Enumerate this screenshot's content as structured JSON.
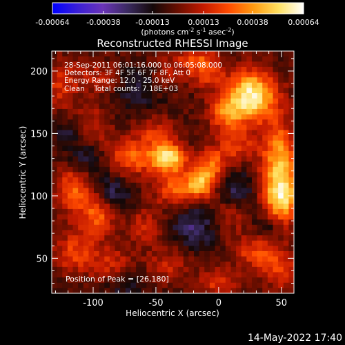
{
  "chart_data": {
    "type": "heatmap",
    "title": "Reconstructed RHESSI Image",
    "xlabel": "Heliocentric X (arcsec)",
    "ylabel": "Heliocentric Y (arcsec)",
    "xlim": [
      -133,
      60
    ],
    "ylim": [
      22,
      216
    ],
    "x_ticks": [
      -100,
      -50,
      0,
      50
    ],
    "y_ticks": [
      50,
      100,
      150,
      200
    ],
    "colorbar": {
      "range": [
        -0.00064,
        0.00064
      ],
      "ticks": [
        "-0.00064",
        "-0.00038",
        "-0.00013",
        "0.00013",
        "0.00038",
        "0.00064"
      ],
      "unit_label": "(photons cm",
      "unit_sup1": "-2",
      "unit_mid": " s",
      "unit_sup2": "-1",
      "unit_mid2": " asec",
      "unit_sup3": "-2",
      "unit_end": ")"
    },
    "annotations": [
      "28-Sep-2011 06:01:16.000 to 06:05:08.000",
      "Detectors: 3F 4F 5F 6F 7F 8F, Att 0",
      "Energy Range: 12.0 - 25.0 keV",
      "Clean    Total counts: 7.18E+03"
    ],
    "peak_label": "Position of Peak = [26,180]",
    "peak": [
      26,
      180
    ],
    "hotspots": [
      {
        "x": 26,
        "y": 180,
        "value": 0.00064,
        "sx": 14,
        "sy": 14
      },
      {
        "x": 50,
        "y": 100,
        "value": 0.00058,
        "sx": 10,
        "sy": 16
      },
      {
        "x": 48,
        "y": 135,
        "value": 0.0004,
        "sx": 10,
        "sy": 18
      },
      {
        "x": -40,
        "y": 130,
        "value": 0.00055,
        "sx": 10,
        "sy": 8
      },
      {
        "x": -15,
        "y": 110,
        "value": 0.00045,
        "sx": 8,
        "sy": 8
      },
      {
        "x": -35,
        "y": 105,
        "value": 0.0003,
        "sx": 12,
        "sy": 10
      },
      {
        "x": -5,
        "y": 125,
        "value": 0.00032,
        "sx": 8,
        "sy": 10
      },
      {
        "x": -70,
        "y": 130,
        "value": 0.00032,
        "sx": 14,
        "sy": 10
      },
      {
        "x": -50,
        "y": 150,
        "value": 0.00022,
        "sx": 12,
        "sy": 10
      },
      {
        "x": -100,
        "y": 155,
        "value": 0.00018,
        "sx": 10,
        "sy": 12
      },
      {
        "x": -115,
        "y": 105,
        "value": 0.00032,
        "sx": 10,
        "sy": 14
      },
      {
        "x": -95,
        "y": 85,
        "value": 0.00035,
        "sx": 10,
        "sy": 12
      },
      {
        "x": -115,
        "y": 55,
        "value": 0.00026,
        "sx": 12,
        "sy": 12
      },
      {
        "x": -85,
        "y": 45,
        "value": 0.0002,
        "sx": 12,
        "sy": 10
      },
      {
        "x": -125,
        "y": 190,
        "value": 0.00022,
        "sx": 10,
        "sy": 14
      },
      {
        "x": -95,
        "y": 195,
        "value": 0.00016,
        "sx": 12,
        "sy": 10
      },
      {
        "x": -40,
        "y": 200,
        "value": 0.00014,
        "sx": 10,
        "sy": 10
      },
      {
        "x": -10,
        "y": 200,
        "value": 0.00025,
        "sx": 10,
        "sy": 10
      },
      {
        "x": 5,
        "y": 165,
        "value": 0.0003,
        "sx": 10,
        "sy": 10
      },
      {
        "x": 15,
        "y": 140,
        "value": 0.00024,
        "sx": 10,
        "sy": 10
      },
      {
        "x": 30,
        "y": 55,
        "value": 0.00026,
        "sx": 14,
        "sy": 10
      },
      {
        "x": 0,
        "y": 30,
        "value": 0.00022,
        "sx": 12,
        "sy": 8
      },
      {
        "x": -40,
        "y": 45,
        "value": 0.00018,
        "sx": 12,
        "sy": 10
      },
      {
        "x": 50,
        "y": 40,
        "value": 0.00025,
        "sx": 10,
        "sy": 10
      },
      {
        "x": -60,
        "y": 75,
        "value": 0.0002,
        "sx": 10,
        "sy": 10
      },
      {
        "x": 10,
        "y": 85,
        "value": 0.00015,
        "sx": 10,
        "sy": 10
      },
      {
        "x": -20,
        "y": 210,
        "value": 0.0002,
        "sx": 10,
        "sy": 6
      }
    ],
    "coldspots": [
      {
        "x": -85,
        "y": 100,
        "value": -0.00022,
        "sx": 10,
        "sy": 12
      },
      {
        "x": -105,
        "y": 130,
        "value": -0.00018,
        "sx": 10,
        "sy": 10
      },
      {
        "x": -20,
        "y": 75,
        "value": -0.00022,
        "sx": 12,
        "sy": 12
      },
      {
        "x": 15,
        "y": 105,
        "value": -0.00018,
        "sx": 10,
        "sy": 10
      },
      {
        "x": -65,
        "y": 185,
        "value": -0.00016,
        "sx": 12,
        "sy": 12
      },
      {
        "x": 40,
        "y": 75,
        "value": -0.00016,
        "sx": 8,
        "sy": 8
      },
      {
        "x": -75,
        "y": 30,
        "value": -0.00015,
        "sx": 10,
        "sy": 8
      },
      {
        "x": -120,
        "y": 150,
        "value": -0.00014,
        "sx": 8,
        "sy": 8
      }
    ],
    "colors": {
      "background": "#000000",
      "text": "#ffffff",
      "colormap": [
        "#0000ff",
        "#3a1fd6",
        "#6a34b8",
        "#3a2a60",
        "#140808",
        "#6a0e00",
        "#c41a00",
        "#ff4a00",
        "#ff9a10",
        "#ffe060",
        "#ffffff"
      ]
    }
  },
  "footer": {
    "timestamp": "14-May-2022 17:40"
  }
}
